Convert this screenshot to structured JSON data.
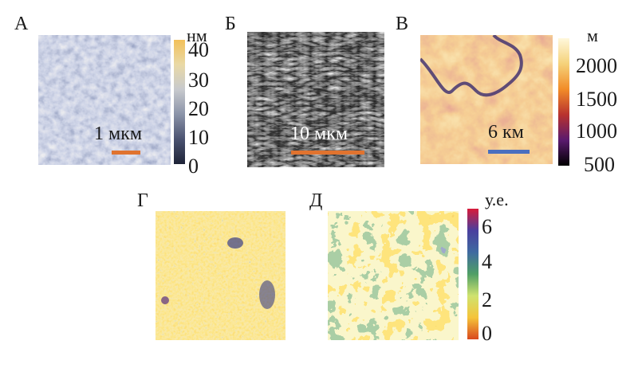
{
  "panels": {
    "a": {
      "label": "А",
      "scale_bar_text": "1 мкм",
      "colorbar": {
        "unit": "нм",
        "ticks": [
          "40",
          "30",
          "20",
          "10",
          "0"
        ]
      },
      "scale_bar_color": "#e0732f"
    },
    "b": {
      "label": "Б",
      "scale_bar_text": "10 мкм",
      "scale_bar_color": "#e0732f"
    },
    "c": {
      "label": "В",
      "scale_bar_text": "6 км",
      "colorbar": {
        "unit": "м",
        "ticks": [
          "2000",
          "1500",
          "1000",
          "500"
        ]
      },
      "scale_bar_color": "#4a6fbf"
    },
    "d": {
      "label": "Г"
    },
    "e": {
      "label": "Д",
      "colorbar": {
        "unit": "у.е.",
        "ticks": [
          "6",
          "4",
          "2",
          "0"
        ]
      }
    }
  }
}
